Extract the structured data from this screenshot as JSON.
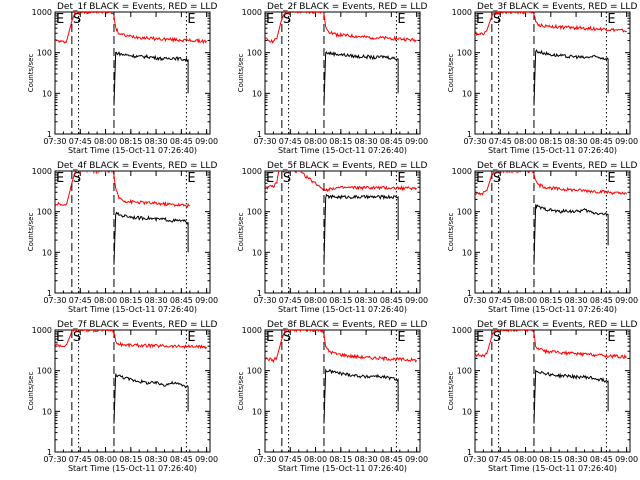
{
  "chart_data": [
    {
      "type": "line",
      "title": "Det_1f BLACK = Events, RED = LLD",
      "xlabel": "Start Time (15-Oct-11 07:26:40)",
      "ylabel": "Counts/sec",
      "y_scale": "log",
      "ylim": [
        1,
        1000
      ],
      "xlim": [
        "07:30",
        "09:02"
      ],
      "x_ticks": [
        "07:30",
        "07:45",
        "08:00",
        "08:15",
        "08:30",
        "08:45",
        "09:00"
      ],
      "y_ticks": [
        "1",
        "10",
        "100",
        "1000"
      ],
      "markers": {
        "start": "E",
        "mid": "S",
        "end": "E"
      },
      "dashed_lines_at": [
        "07:40",
        "08:05"
      ],
      "dotted_lines_at": [
        "07:44",
        "08:48"
      ],
      "series": [
        {
          "color": "#ff0000",
          "x": [
            "07:30",
            "07:33",
            "07:35",
            "07:37",
            "07:40",
            "07:42",
            "07:44",
            "08:04",
            "08:05",
            "08:06",
            "08:08",
            "08:12",
            "08:20",
            "08:30",
            "08:40",
            "08:50",
            "09:00"
          ],
          "y": [
            200,
            190,
            180,
            200,
            600,
            1000,
            1000,
            1000,
            800,
            400,
            300,
            260,
            240,
            220,
            210,
            200,
            190
          ]
        },
        {
          "color": "#000000",
          "x": [
            "08:05",
            "08:06",
            "08:10",
            "08:15",
            "08:20",
            "08:25",
            "08:30",
            "08:35",
            "08:40",
            "08:45",
            "08:49",
            "08:49"
          ],
          "y": [
            5,
            100,
            90,
            85,
            80,
            80,
            75,
            70,
            75,
            70,
            65,
            10
          ]
        }
      ]
    },
    {
      "type": "line",
      "title": "Det_2f BLACK = Events, RED = LLD",
      "xlabel": "Start Time (15-Oct-11 07:26:40)",
      "ylabel": "Counts/sec",
      "y_scale": "log",
      "ylim": [
        1,
        1000
      ],
      "xlim": [
        "07:30",
        "09:02"
      ],
      "x_ticks": [
        "07:30",
        "07:45",
        "08:00",
        "08:15",
        "08:30",
        "08:45",
        "09:00"
      ],
      "y_ticks": [
        "1",
        "10",
        "100",
        "1000"
      ],
      "markers": {
        "start": "E",
        "mid": "S",
        "end": "E"
      },
      "dashed_lines_at": [
        "07:40",
        "08:05"
      ],
      "dotted_lines_at": [
        "07:44",
        "08:48"
      ],
      "series": [
        {
          "color": "#ff0000",
          "x": [
            "07:30",
            "07:33",
            "07:35",
            "07:37",
            "07:40",
            "07:42",
            "07:44",
            "08:04",
            "08:05",
            "08:06",
            "08:08",
            "08:12",
            "08:20",
            "08:30",
            "08:40",
            "08:50",
            "09:00"
          ],
          "y": [
            220,
            200,
            190,
            220,
            700,
            1000,
            1000,
            1000,
            900,
            450,
            330,
            280,
            260,
            240,
            230,
            220,
            200
          ]
        },
        {
          "color": "#000000",
          "x": [
            "08:05",
            "08:06",
            "08:10",
            "08:15",
            "08:20",
            "08:25",
            "08:30",
            "08:35",
            "08:40",
            "08:45",
            "08:49",
            "08:49"
          ],
          "y": [
            5,
            100,
            95,
            90,
            85,
            80,
            80,
            75,
            80,
            75,
            70,
            10
          ]
        }
      ]
    },
    {
      "type": "line",
      "title": "Det_3f BLACK = Events, RED = LLD",
      "xlabel": "Start Time (15-Oct-11 07:26:40)",
      "ylabel": "Counts/sec",
      "y_scale": "log",
      "ylim": [
        1,
        1000
      ],
      "xlim": [
        "07:30",
        "09:02"
      ],
      "x_ticks": [
        "07:30",
        "07:45",
        "08:00",
        "08:15",
        "08:30",
        "08:45",
        "09:00"
      ],
      "y_ticks": [
        "1",
        "10",
        "100",
        "1000"
      ],
      "markers": {
        "start": "E",
        "mid": "S",
        "end": "E"
      },
      "dashed_lines_at": [
        "07:40",
        "08:05"
      ],
      "dotted_lines_at": [
        "07:44",
        "08:48"
      ],
      "series": [
        {
          "color": "#ff0000",
          "x": [
            "07:30",
            "07:33",
            "07:35",
            "07:37",
            "07:40",
            "07:42",
            "07:44",
            "08:04",
            "08:05",
            "08:06",
            "08:08",
            "08:12",
            "08:20",
            "08:30",
            "08:40",
            "08:50",
            "09:00"
          ],
          "y": [
            300,
            290,
            300,
            350,
            800,
            1000,
            1000,
            1000,
            900,
            550,
            480,
            450,
            430,
            410,
            390,
            370,
            340
          ]
        },
        {
          "color": "#000000",
          "x": [
            "08:05",
            "08:06",
            "08:10",
            "08:15",
            "08:20",
            "08:25",
            "08:30",
            "08:35",
            "08:40",
            "08:45",
            "08:49",
            "08:49"
          ],
          "y": [
            5,
            110,
            100,
            90,
            85,
            80,
            80,
            75,
            80,
            75,
            70,
            10
          ]
        }
      ]
    },
    {
      "type": "line",
      "title": "Det_4f BLACK = Events, RED = LLD",
      "xlabel": "Start Time (15-Oct-11 07:26:40)",
      "ylabel": "Counts/sec",
      "y_scale": "log",
      "ylim": [
        1,
        1000
      ],
      "xlim": [
        "07:30",
        "09:02"
      ],
      "x_ticks": [
        "07:30",
        "07:45",
        "08:00",
        "08:15",
        "08:30",
        "08:45",
        "09:00"
      ],
      "y_ticks": [
        "1",
        "10",
        "100",
        "1000"
      ],
      "markers": {
        "start": "E",
        "mid": "S",
        "end": "E"
      },
      "dashed_lines_at": [
        "07:40",
        "08:05"
      ],
      "dotted_lines_at": [
        "07:44",
        "08:48"
      ],
      "series": [
        {
          "color": "#ff0000",
          "x": [
            "07:30",
            "07:33",
            "07:35",
            "07:37",
            "07:40",
            "07:42",
            "07:44",
            "08:04",
            "08:05",
            "08:06",
            "08:08",
            "08:12",
            "08:20",
            "08:30",
            "08:40",
            "08:50"
          ],
          "y": [
            160,
            150,
            140,
            160,
            500,
            1000,
            1000,
            1000,
            800,
            350,
            220,
            180,
            170,
            160,
            150,
            140
          ]
        },
        {
          "color": "#000000",
          "x": [
            "08:05",
            "08:06",
            "08:10",
            "08:15",
            "08:20",
            "08:25",
            "08:30",
            "08:35",
            "08:40",
            "08:45",
            "08:49",
            "08:49"
          ],
          "y": [
            5,
            90,
            80,
            75,
            70,
            70,
            65,
            65,
            60,
            60,
            55,
            10
          ]
        }
      ]
    },
    {
      "type": "line",
      "title": "Det_5f BLACK = Events, RED = LLD",
      "xlabel": "Start Time (15-Oct-11 07:26:40)",
      "ylabel": "Counts/sec",
      "y_scale": "log",
      "ylim": [
        1,
        1000
      ],
      "xlim": [
        "07:30",
        "09:02"
      ],
      "x_ticks": [
        "07:30",
        "07:45",
        "08:00",
        "08:15",
        "08:30",
        "08:45",
        "09:00"
      ],
      "y_ticks": [
        "1",
        "10",
        "100",
        "1000"
      ],
      "markers": {
        "start": "E",
        "mid": "S",
        "end": "E"
      },
      "dashed_lines_at": [
        "07:40",
        "08:05"
      ],
      "dotted_lines_at": [
        "07:44",
        "08:48"
      ],
      "series": [
        {
          "color": "#ff0000",
          "x": [
            "07:30",
            "07:33",
            "07:35",
            "07:37",
            "07:38",
            "07:40",
            "07:44",
            "07:50",
            "07:55",
            "08:00",
            "08:05",
            "08:06",
            "08:10",
            "08:20",
            "08:30",
            "08:40",
            "08:50",
            "09:00"
          ],
          "y": [
            400,
            400,
            420,
            500,
            1000,
            1000,
            1000,
            1000,
            700,
            500,
            350,
            340,
            380,
            390,
            390,
            385,
            380,
            380
          ]
        },
        {
          "color": "#000000",
          "x": [
            "08:05",
            "08:06",
            "08:10",
            "08:15",
            "08:20",
            "08:25",
            "08:30",
            "08:35",
            "08:40",
            "08:45",
            "08:49",
            "08:49"
          ],
          "y": [
            5,
            240,
            230,
            230,
            230,
            230,
            230,
            230,
            230,
            230,
            230,
            20
          ]
        }
      ]
    },
    {
      "type": "line",
      "title": "Det_6f BLACK = Events, RED = LLD",
      "xlabel": "Start Time (15-Oct-11 07:26:40)",
      "ylabel": "Counts/sec",
      "y_scale": "log",
      "ylim": [
        1,
        1000
      ],
      "xlim": [
        "07:30",
        "09:02"
      ],
      "x_ticks": [
        "07:30",
        "07:45",
        "08:00",
        "08:15",
        "08:30",
        "08:45",
        "09:00"
      ],
      "y_ticks": [
        "1",
        "10",
        "100",
        "1000"
      ],
      "markers": {
        "start": "E",
        "mid": "S",
        "end": "E"
      },
      "dashed_lines_at": [
        "07:40",
        "08:05"
      ],
      "dotted_lines_at": [
        "07:44",
        "08:48"
      ],
      "series": [
        {
          "color": "#ff0000",
          "x": [
            "07:30",
            "07:33",
            "07:35",
            "07:37",
            "07:40",
            "07:42",
            "07:44",
            "08:04",
            "08:05",
            "08:06",
            "08:08",
            "08:12",
            "08:20",
            "08:30",
            "08:40",
            "08:50",
            "09:00"
          ],
          "y": [
            280,
            270,
            290,
            330,
            800,
            1000,
            1000,
            1000,
            900,
            550,
            450,
            400,
            360,
            340,
            320,
            300,
            270
          ]
        },
        {
          "color": "#000000",
          "x": [
            "08:05",
            "08:06",
            "08:10",
            "08:15",
            "08:20",
            "08:25",
            "08:30",
            "08:35",
            "08:40",
            "08:45",
            "08:49",
            "08:49"
          ],
          "y": [
            5,
            140,
            120,
            110,
            100,
            105,
            100,
            110,
            95,
            90,
            85,
            15
          ]
        }
      ]
    },
    {
      "type": "line",
      "title": "Det_7f BLACK = Events, RED = LLD",
      "xlabel": "Start Time (15-Oct-11 07:26:40)",
      "ylabel": "Counts/sec",
      "y_scale": "log",
      "ylim": [
        1,
        1000
      ],
      "xlim": [
        "07:30",
        "09:02"
      ],
      "x_ticks": [
        "07:30",
        "07:45",
        "08:00",
        "08:15",
        "08:30",
        "08:45",
        "09:00"
      ],
      "y_ticks": [
        "1",
        "10",
        "100",
        "1000"
      ],
      "markers": {
        "start": "E",
        "mid": "S",
        "end": "E"
      },
      "dashed_lines_at": [
        "07:40",
        "08:05"
      ],
      "dotted_lines_at": [
        "07:44",
        "08:48"
      ],
      "series": [
        {
          "color": "#ff0000",
          "x": [
            "07:30",
            "07:33",
            "07:35",
            "07:37",
            "07:40",
            "07:42",
            "07:44",
            "08:04",
            "08:05",
            "08:06",
            "08:08",
            "08:12",
            "08:20",
            "08:30",
            "08:40",
            "08:50",
            "09:00"
          ],
          "y": [
            450,
            420,
            400,
            450,
            900,
            1000,
            1000,
            1000,
            900,
            500,
            450,
            430,
            420,
            410,
            400,
            390,
            380
          ]
        },
        {
          "color": "#000000",
          "x": [
            "08:05",
            "08:06",
            "08:10",
            "08:15",
            "08:20",
            "08:25",
            "08:30",
            "08:35",
            "08:40",
            "08:45",
            "08:49",
            "08:49"
          ],
          "y": [
            5,
            80,
            70,
            60,
            55,
            50,
            50,
            45,
            50,
            45,
            40,
            10
          ]
        }
      ]
    },
    {
      "type": "line",
      "title": "Det_8f BLACK = Events, RED = LLD",
      "xlabel": "Start Time (15-Oct-11 07:26:40)",
      "ylabel": "Counts/sec",
      "y_scale": "log",
      "ylim": [
        1,
        1000
      ],
      "xlim": [
        "07:30",
        "09:02"
      ],
      "x_ticks": [
        "07:30",
        "07:45",
        "08:00",
        "08:15",
        "08:30",
        "08:45",
        "09:00"
      ],
      "y_ticks": [
        "1",
        "10",
        "100",
        "1000"
      ],
      "markers": {
        "start": "E",
        "mid": "S",
        "end": "E"
      },
      "dashed_lines_at": [
        "07:40",
        "08:05"
      ],
      "dotted_lines_at": [
        "07:44",
        "08:48"
      ],
      "series": [
        {
          "color": "#ff0000",
          "x": [
            "07:30",
            "07:33",
            "07:35",
            "07:37",
            "07:40",
            "07:42",
            "07:44",
            "08:04",
            "08:05",
            "08:06",
            "08:08",
            "08:12",
            "08:20",
            "08:30",
            "08:40",
            "08:50",
            "09:00"
          ],
          "y": [
            200,
            190,
            180,
            210,
            600,
            1000,
            1000,
            1000,
            800,
            380,
            300,
            260,
            230,
            210,
            200,
            190,
            180
          ]
        },
        {
          "color": "#000000",
          "x": [
            "08:05",
            "08:06",
            "08:10",
            "08:15",
            "08:20",
            "08:25",
            "08:30",
            "08:35",
            "08:40",
            "08:45",
            "08:49",
            "08:49"
          ],
          "y": [
            5,
            100,
            95,
            85,
            80,
            75,
            70,
            75,
            70,
            65,
            60,
            10
          ]
        }
      ]
    },
    {
      "type": "line",
      "title": "Det_9f BLACK = Events, RED = LLD",
      "xlabel": "Start Time (15-Oct-11 07:26:40)",
      "ylabel": "Counts/sec",
      "y_scale": "log",
      "ylim": [
        1,
        1000
      ],
      "xlim": [
        "07:30",
        "09:02"
      ],
      "x_ticks": [
        "07:30",
        "07:45",
        "08:00",
        "08:15",
        "08:30",
        "08:45",
        "09:00"
      ],
      "y_ticks": [
        "1",
        "10",
        "100",
        "1000"
      ],
      "markers": {
        "start": "E",
        "mid": "S",
        "end": "E"
      },
      "dashed_lines_at": [
        "07:40",
        "08:05"
      ],
      "dotted_lines_at": [
        "07:44",
        "08:48"
      ],
      "series": [
        {
          "color": "#ff0000",
          "x": [
            "07:30",
            "07:33",
            "07:35",
            "07:37",
            "07:40",
            "07:42",
            "07:44",
            "08:04",
            "08:05",
            "08:06",
            "08:08",
            "08:12",
            "08:20",
            "08:30",
            "08:40",
            "08:50",
            "09:00"
          ],
          "y": [
            250,
            240,
            230,
            260,
            700,
            1000,
            1000,
            1000,
            850,
            400,
            330,
            300,
            280,
            260,
            250,
            230,
            220
          ]
        },
        {
          "color": "#000000",
          "x": [
            "08:05",
            "08:06",
            "08:10",
            "08:15",
            "08:20",
            "08:25",
            "08:30",
            "08:35",
            "08:40",
            "08:45",
            "08:49",
            "08:49"
          ],
          "y": [
            5,
            100,
            90,
            80,
            75,
            75,
            70,
            70,
            65,
            60,
            55,
            10
          ]
        }
      ]
    }
  ]
}
